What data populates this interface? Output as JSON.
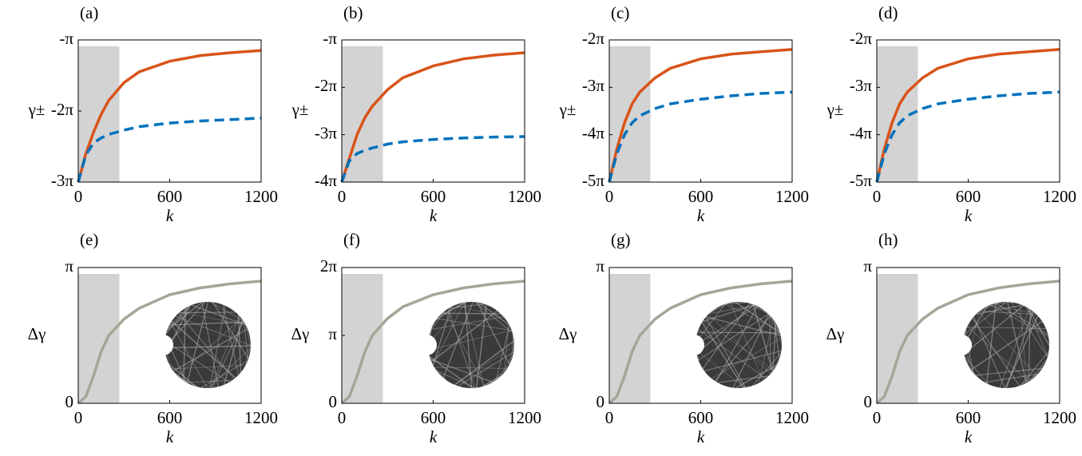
{
  "chart_data": [
    {
      "type": "line",
      "panel_label": "(a)",
      "xlabel": "k",
      "ylabel": "γ±",
      "xlim": [
        0,
        1200
      ],
      "xticks": [
        0,
        600,
        1200
      ],
      "ylim": [
        -3,
        -1
      ],
      "yticks": [
        {
          "value": -3,
          "label": "-3π"
        },
        {
          "value": -2,
          "label": "-2π"
        },
        {
          "value": -1,
          "label": "-π"
        }
      ],
      "shaded_x": [
        0,
        270
      ],
      "x": [
        0,
        50,
        100,
        150,
        200,
        300,
        400,
        600,
        800,
        1000,
        1200
      ],
      "series": [
        {
          "color": "#d95319",
          "dashed": false,
          "values": [
            -3,
            -2.6,
            -2.3,
            -2.05,
            -1.85,
            -1.6,
            -1.45,
            -1.3,
            -1.22,
            -1.18,
            -1.15
          ]
        },
        {
          "color": "#0072bd",
          "dashed": true,
          "values": [
            -3,
            -2.62,
            -2.45,
            -2.38,
            -2.33,
            -2.27,
            -2.22,
            -2.17,
            -2.14,
            -2.12,
            -2.1
          ]
        }
      ]
    },
    {
      "type": "line",
      "panel_label": "(b)",
      "xlabel": "k",
      "ylabel": "γ±",
      "xlim": [
        0,
        1200
      ],
      "xticks": [
        0,
        600,
        1200
      ],
      "ylim": [
        -4,
        -1
      ],
      "yticks": [
        {
          "value": -4,
          "label": "-4π"
        },
        {
          "value": -3,
          "label": "-3π"
        },
        {
          "value": -2,
          "label": "-2π"
        },
        {
          "value": -1,
          "label": "-π"
        }
      ],
      "shaded_x": [
        0,
        270
      ],
      "x": [
        0,
        50,
        100,
        150,
        200,
        300,
        400,
        600,
        800,
        1000,
        1200
      ],
      "series": [
        {
          "color": "#d95319",
          "dashed": false,
          "values": [
            -4,
            -3.5,
            -3.0,
            -2.65,
            -2.4,
            -2.05,
            -1.8,
            -1.55,
            -1.4,
            -1.32,
            -1.27
          ]
        },
        {
          "color": "#0072bd",
          "dashed": true,
          "values": [
            -4,
            -3.55,
            -3.4,
            -3.33,
            -3.28,
            -3.2,
            -3.15,
            -3.1,
            -3.07,
            -3.05,
            -3.04
          ]
        }
      ]
    },
    {
      "type": "line",
      "panel_label": "(c)",
      "xlabel": "k",
      "ylabel": "γ±",
      "xlim": [
        0,
        1200
      ],
      "xticks": [
        0,
        600,
        1200
      ],
      "ylim": [
        -5,
        -2
      ],
      "yticks": [
        {
          "value": -5,
          "label": "-5π"
        },
        {
          "value": -4,
          "label": "-4π"
        },
        {
          "value": -3,
          "label": "-3π"
        },
        {
          "value": -2,
          "label": "-2π"
        }
      ],
      "shaded_x": [
        0,
        270
      ],
      "x": [
        0,
        50,
        100,
        150,
        200,
        300,
        400,
        600,
        800,
        1000,
        1200
      ],
      "series": [
        {
          "color": "#d95319",
          "dashed": false,
          "values": [
            -5,
            -4.3,
            -3.75,
            -3.35,
            -3.1,
            -2.8,
            -2.6,
            -2.4,
            -2.3,
            -2.25,
            -2.2
          ]
        },
        {
          "color": "#0072bd",
          "dashed": true,
          "values": [
            -5,
            -4.4,
            -4.0,
            -3.75,
            -3.6,
            -3.45,
            -3.35,
            -3.25,
            -3.18,
            -3.13,
            -3.1
          ]
        }
      ]
    },
    {
      "type": "line",
      "panel_label": "(d)",
      "xlabel": "k",
      "ylabel": "γ±",
      "xlim": [
        0,
        1200
      ],
      "xticks": [
        0,
        600,
        1200
      ],
      "ylim": [
        -5,
        -2
      ],
      "yticks": [
        {
          "value": -5,
          "label": "-5π"
        },
        {
          "value": -4,
          "label": "-4π"
        },
        {
          "value": -3,
          "label": "-3π"
        },
        {
          "value": -2,
          "label": "-2π"
        }
      ],
      "shaded_x": [
        0,
        270
      ],
      "x": [
        0,
        50,
        100,
        150,
        200,
        300,
        400,
        600,
        800,
        1000,
        1200
      ],
      "series": [
        {
          "color": "#d95319",
          "dashed": false,
          "values": [
            -5,
            -4.3,
            -3.75,
            -3.35,
            -3.1,
            -2.8,
            -2.6,
            -2.4,
            -2.3,
            -2.25,
            -2.2
          ]
        },
        {
          "color": "#0072bd",
          "dashed": true,
          "values": [
            -5,
            -4.4,
            -4.0,
            -3.75,
            -3.6,
            -3.45,
            -3.35,
            -3.25,
            -3.18,
            -3.13,
            -3.1
          ]
        }
      ]
    },
    {
      "type": "line",
      "panel_label": "(e)",
      "xlabel": "k",
      "ylabel": "Δγ",
      "xlim": [
        0,
        1200
      ],
      "xticks": [
        0,
        600,
        1200
      ],
      "ylim": [
        0,
        1
      ],
      "yticks": [
        0,
        {
          "value": 1,
          "label": "π"
        }
      ],
      "shaded_x": [
        0,
        270
      ],
      "x": [
        0,
        50,
        100,
        150,
        200,
        300,
        400,
        600,
        800,
        1000,
        1200
      ],
      "series": [
        {
          "color": "#a5a598",
          "dashed": false,
          "values": [
            0,
            0.05,
            0.2,
            0.38,
            0.5,
            0.62,
            0.7,
            0.8,
            0.85,
            0.88,
            0.9
          ]
        }
      ]
    },
    {
      "type": "line",
      "panel_label": "(f)",
      "xlabel": "k",
      "ylabel": "Δγ",
      "xlim": [
        0,
        1200
      ],
      "xticks": [
        0,
        600,
        1200
      ],
      "ylim": [
        0,
        2
      ],
      "yticks": [
        0,
        {
          "value": 1,
          "label": "π"
        },
        {
          "value": 2,
          "label": "2π"
        }
      ],
      "shaded_x": [
        0,
        270
      ],
      "x": [
        0,
        50,
        100,
        150,
        200,
        300,
        400,
        600,
        800,
        1000,
        1200
      ],
      "series": [
        {
          "color": "#a5a598",
          "dashed": false,
          "values": [
            0,
            0.1,
            0.4,
            0.75,
            1.0,
            1.25,
            1.42,
            1.6,
            1.7,
            1.76,
            1.8
          ]
        }
      ]
    },
    {
      "type": "line",
      "panel_label": "(g)",
      "xlabel": "k",
      "ylabel": "Δγ",
      "xlim": [
        0,
        1200
      ],
      "xticks": [
        0,
        600,
        1200
      ],
      "ylim": [
        0,
        1
      ],
      "yticks": [
        0,
        {
          "value": 1,
          "label": "π"
        }
      ],
      "shaded_x": [
        0,
        270
      ],
      "x": [
        0,
        50,
        100,
        150,
        200,
        300,
        400,
        600,
        800,
        1000,
        1200
      ],
      "series": [
        {
          "color": "#a5a598",
          "dashed": false,
          "values": [
            0,
            0.05,
            0.2,
            0.38,
            0.5,
            0.62,
            0.7,
            0.8,
            0.85,
            0.88,
            0.9
          ]
        }
      ]
    },
    {
      "type": "line",
      "panel_label": "(h)",
      "xlabel": "k",
      "ylabel": "Δγ",
      "xlim": [
        0,
        1200
      ],
      "xticks": [
        0,
        600,
        1200
      ],
      "ylim": [
        0,
        1
      ],
      "yticks": [
        0,
        {
          "value": 1,
          "label": "π"
        }
      ],
      "shaded_x": [
        0,
        270
      ],
      "x": [
        0,
        50,
        100,
        150,
        200,
        300,
        400,
        600,
        800,
        1000,
        1200
      ],
      "series": [
        {
          "color": "#a5a598",
          "dashed": false,
          "values": [
            0,
            0.05,
            0.2,
            0.38,
            0.5,
            0.62,
            0.7,
            0.8,
            0.85,
            0.88,
            0.9
          ]
        }
      ]
    }
  ]
}
